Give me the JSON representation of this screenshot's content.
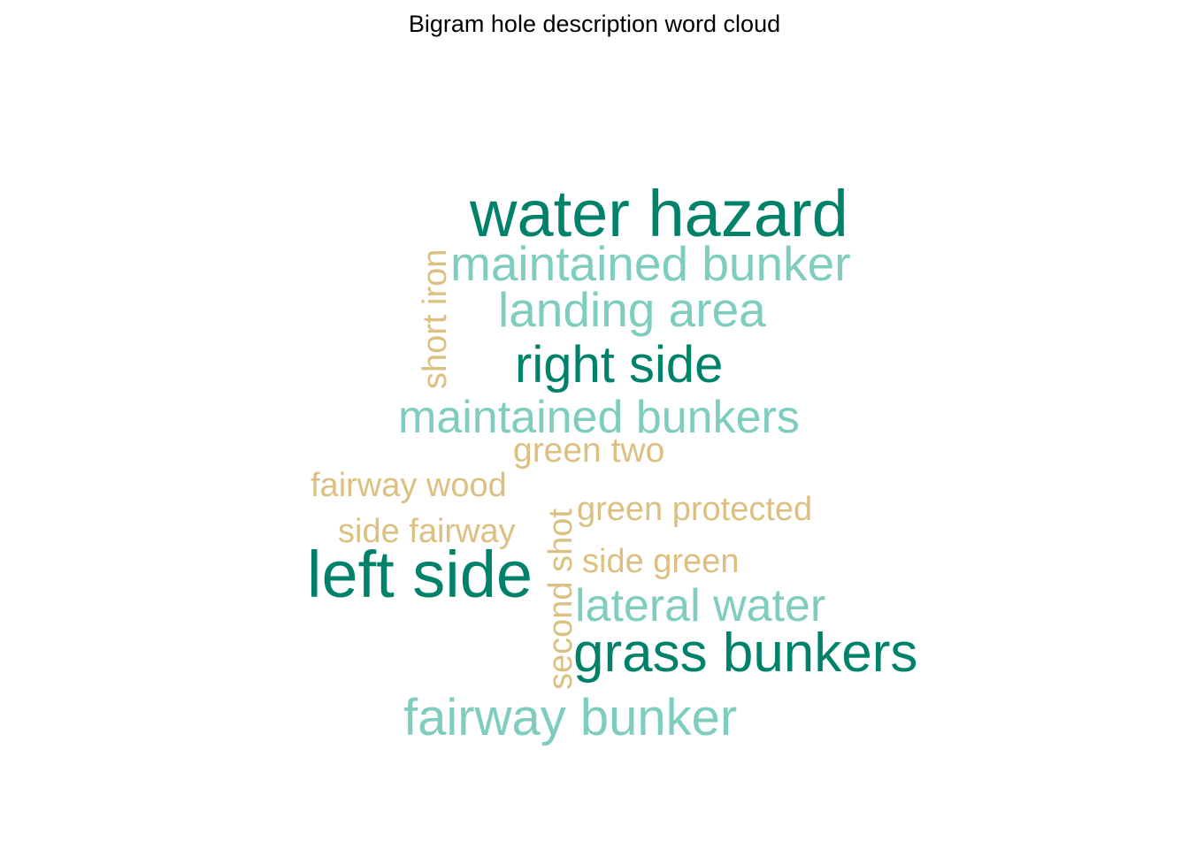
{
  "title": "Bigram hole description word cloud",
  "palette": {
    "dark": "#00826A",
    "light": "#7ECDBE",
    "tan": "#DCC082"
  },
  "words": [
    {
      "text": "water hazard",
      "tier": "dark"
    },
    {
      "text": "maintained bunker",
      "tier": "light"
    },
    {
      "text": "landing area",
      "tier": "light"
    },
    {
      "text": "right side",
      "tier": "dark"
    },
    {
      "text": "maintained bunkers",
      "tier": "light"
    },
    {
      "text": "green two",
      "tier": "tan"
    },
    {
      "text": "fairway wood",
      "tier": "tan"
    },
    {
      "text": "green protected",
      "tier": "tan"
    },
    {
      "text": "side fairway",
      "tier": "tan"
    },
    {
      "text": "side green",
      "tier": "tan"
    },
    {
      "text": "left side",
      "tier": "dark"
    },
    {
      "text": "lateral water",
      "tier": "light"
    },
    {
      "text": "grass bunkers",
      "tier": "dark"
    },
    {
      "text": "fairway bunker",
      "tier": "light"
    },
    {
      "text": "short iron",
      "tier": "tan"
    },
    {
      "text": "second shot",
      "tier": "tan"
    }
  ]
}
